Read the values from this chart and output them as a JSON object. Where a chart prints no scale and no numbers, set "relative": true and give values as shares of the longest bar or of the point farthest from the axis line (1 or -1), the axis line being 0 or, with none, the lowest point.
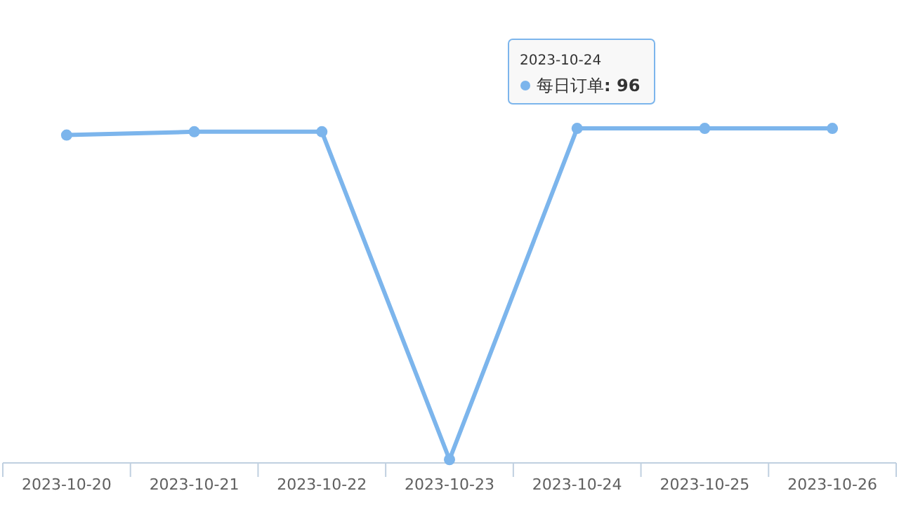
{
  "chart_data": {
    "type": "line",
    "categories": [
      "2023-10-20",
      "2023-10-21",
      "2023-10-22",
      "2023-10-23",
      "2023-10-24",
      "2023-10-25",
      "2023-10-26"
    ],
    "series": [
      {
        "name": "每日订单",
        "color": "#7cb5ec",
        "values": [
          0.98,
          0.99,
          0.99,
          0.01,
          1,
          1,
          1
        ]
      }
    ],
    "relative": true,
    "tick_labels": "x",
    "marker": "circle",
    "line_style": "solid",
    "annotations": [
      "2023-10-24",
      ": 96"
    ]
  }
}
